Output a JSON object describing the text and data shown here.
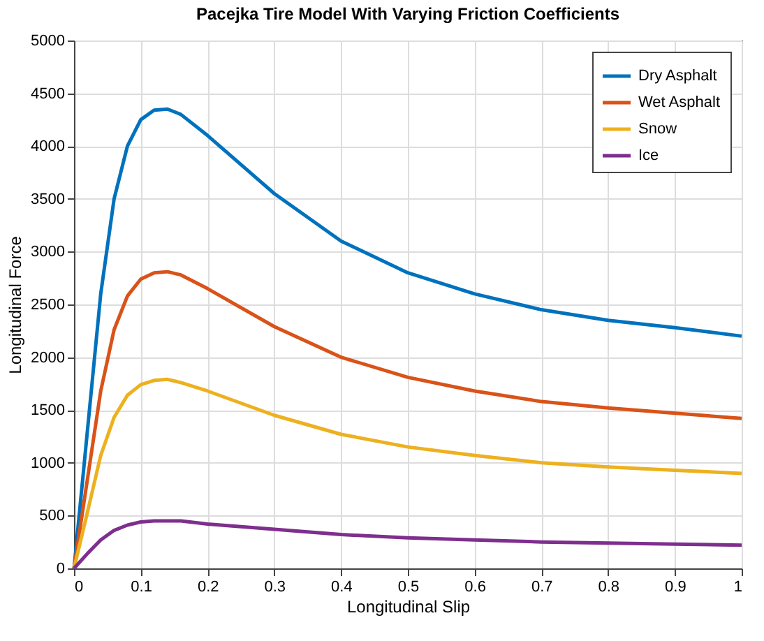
{
  "chart_data": {
    "type": "line",
    "title": "Pacejka Tire Model With Varying Friction Coefficients",
    "xlabel": "Longitudinal Slip",
    "ylabel": "Longitudinal Force",
    "x": [
      0,
      0.02,
      0.04,
      0.06,
      0.08,
      0.1,
      0.12,
      0.14,
      0.16,
      0.2,
      0.3,
      0.4,
      0.5,
      0.6,
      0.7,
      0.8,
      0.9,
      1.0
    ],
    "series": [
      {
        "name": "Dry Asphalt",
        "color": "#0072bd",
        "values": [
          0,
          1300,
          2600,
          3500,
          4000,
          4250,
          4340,
          4350,
          4300,
          4100,
          3550,
          3100,
          2800,
          2600,
          2450,
          2350,
          2280,
          2200
        ]
      },
      {
        "name": "Wet Asphalt",
        "color": "#d95319",
        "values": [
          0,
          840,
          1680,
          2260,
          2580,
          2740,
          2800,
          2810,
          2780,
          2650,
          2290,
          2000,
          1810,
          1680,
          1580,
          1520,
          1470,
          1420
        ]
      },
      {
        "name": "Snow",
        "color": "#edb120",
        "values": [
          0,
          530,
          1070,
          1430,
          1640,
          1740,
          1780,
          1790,
          1760,
          1680,
          1450,
          1270,
          1150,
          1070,
          1000,
          960,
          930,
          900
        ]
      },
      {
        "name": "Ice",
        "color": "#7e2f8e",
        "values": [
          0,
          140,
          270,
          360,
          410,
          440,
          450,
          450,
          450,
          420,
          370,
          320,
          290,
          270,
          250,
          240,
          230,
          220
        ]
      }
    ],
    "xlim": [
      0,
      1
    ],
    "xticks": [
      0,
      0.1,
      0.2,
      0.3,
      0.4,
      0.5,
      0.6,
      0.7,
      0.8,
      0.9,
      1
    ],
    "ylim": [
      0,
      5000
    ],
    "yticks": [
      0,
      500,
      1000,
      1500,
      2000,
      2500,
      3000,
      3500,
      4000,
      4500,
      5000
    ],
    "grid": true,
    "legend": "top right",
    "marker": "none",
    "line_style": "solid"
  }
}
